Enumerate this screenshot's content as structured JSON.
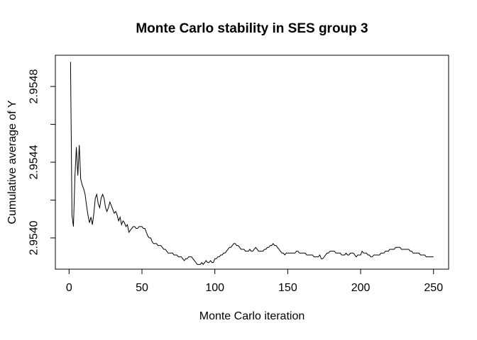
{
  "figure": {
    "background": "#ffffff",
    "line_color": "#000000",
    "text_color": "#000000"
  },
  "chart_data": {
    "type": "line",
    "title": "Monte Carlo stability in SES group 3",
    "xlabel": "Monte Carlo iteration",
    "ylabel": "Cumulative average of Y",
    "grid": false,
    "legend": null,
    "xlim": [
      -9.4,
      260.35
    ],
    "ylim": [
      2.953835,
      2.954965
    ],
    "x_ticks": {
      "values": [
        0,
        50,
        100,
        150,
        200,
        250
      ],
      "labels": [
        "0",
        "50",
        "100",
        "150",
        "200",
        "250"
      ]
    },
    "y_ticks": {
      "values": [
        2.954,
        2.9542,
        2.9544,
        2.9546,
        2.9548
      ],
      "labels": [
        "2.9540",
        "",
        "2.9544",
        "",
        "2.9548"
      ]
    },
    "series": [
      {
        "name": "cumulative-average-of-Y",
        "x_start": 1,
        "values": [
          2.95493,
          2.95412,
          2.95406,
          2.95432,
          2.95448,
          2.95433,
          2.95449,
          2.95431,
          2.95428,
          2.95426,
          2.95423,
          2.95417,
          2.95412,
          2.95408,
          2.95411,
          2.95407,
          2.95413,
          2.95421,
          2.95423,
          2.95418,
          2.95416,
          2.95421,
          2.95423,
          2.95421,
          2.95416,
          2.95414,
          2.95416,
          2.95419,
          2.95417,
          2.95415,
          2.95413,
          2.95414,
          2.95412,
          2.95409,
          2.95411,
          2.95407,
          2.95409,
          2.95408,
          2.95406,
          2.95407,
          2.95403,
          2.95404,
          2.95405,
          2.95406,
          2.95406,
          2.95405,
          2.95405,
          2.95406,
          2.95406,
          2.95406,
          2.95405,
          2.95405,
          2.95403,
          2.95401,
          2.954,
          2.954,
          2.95398,
          2.95397,
          2.95397,
          2.95397,
          2.95396,
          2.95396,
          2.95396,
          2.95395,
          2.95394,
          2.95394,
          2.95393,
          2.95392,
          2.95392,
          2.95392,
          2.95392,
          2.95391,
          2.95391,
          2.95391,
          2.9539,
          2.9539,
          2.9539,
          2.95389,
          2.95388,
          2.95389,
          2.95389,
          2.9539,
          2.9539,
          2.9539,
          2.95389,
          2.95388,
          2.95387,
          2.95386,
          2.95386,
          2.95386,
          2.95387,
          2.95386,
          2.95387,
          2.95388,
          2.95387,
          2.95387,
          2.95388,
          2.95387,
          2.95387,
          2.95389,
          2.95389,
          2.9539,
          2.9539,
          2.95391,
          2.95391,
          2.95392,
          2.95392,
          2.95393,
          2.95394,
          2.95395,
          2.95395,
          2.95396,
          2.95397,
          2.95397,
          2.95396,
          2.95396,
          2.95395,
          2.95394,
          2.95394,
          2.95394,
          2.95393,
          2.95393,
          2.95393,
          2.95394,
          2.95393,
          2.95393,
          2.95394,
          2.95395,
          2.95394,
          2.95393,
          2.95393,
          2.95393,
          2.95393,
          2.95394,
          2.95394,
          2.95395,
          2.95395,
          2.95396,
          2.95396,
          2.95397,
          2.95396,
          2.95396,
          2.95395,
          2.95394,
          2.95393,
          2.95392,
          2.95392,
          2.95391,
          2.95392,
          2.95392,
          2.95392,
          2.95392,
          2.95392,
          2.95392,
          2.95392,
          2.95393,
          2.95393,
          2.95392,
          2.95392,
          2.95392,
          2.95392,
          2.95392,
          2.95391,
          2.95391,
          2.95391,
          2.95391,
          2.95391,
          2.9539,
          2.9539,
          2.9539,
          2.9539,
          2.95391,
          2.95389,
          2.95389,
          2.9539,
          2.95391,
          2.95392,
          2.95392,
          2.95393,
          2.95393,
          2.95393,
          2.95393,
          2.95392,
          2.95392,
          2.95392,
          2.95392,
          2.95391,
          2.95391,
          2.95391,
          2.95392,
          2.95391,
          2.95391,
          2.95392,
          2.95392,
          2.95392,
          2.95391,
          2.9539,
          2.95391,
          2.95391,
          2.95391,
          2.95393,
          2.95392,
          2.95392,
          2.95392,
          2.95391,
          2.95391,
          2.9539,
          2.9539,
          2.95391,
          2.95391,
          2.95391,
          2.95391,
          2.95391,
          2.95392,
          2.95392,
          2.95392,
          2.95393,
          2.95393,
          2.95393,
          2.95394,
          2.95394,
          2.95394,
          2.95394,
          2.95395,
          2.95395,
          2.95395,
          2.95395,
          2.95394,
          2.95394,
          2.95394,
          2.95394,
          2.95394,
          2.95394,
          2.95393,
          2.95393,
          2.95392,
          2.95392,
          2.95392,
          2.95392,
          2.95392,
          2.95391,
          2.95391,
          2.95391,
          2.95391,
          2.9539,
          2.9539,
          2.9539,
          2.9539,
          2.9539,
          2.9539
        ]
      }
    ]
  }
}
